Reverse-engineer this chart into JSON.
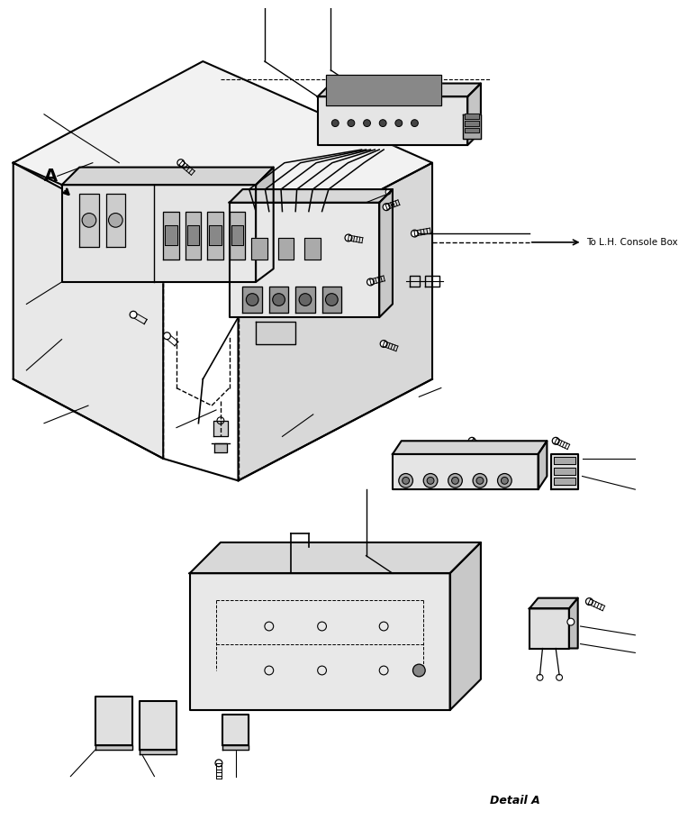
{
  "bg_color": "#ffffff",
  "line_color": "#000000",
  "label_console": "To L.H. Console Box",
  "label_detail": "Detail A",
  "label_A": "A",
  "fig_width": 7.74,
  "fig_height": 9.1,
  "dpi": 100
}
